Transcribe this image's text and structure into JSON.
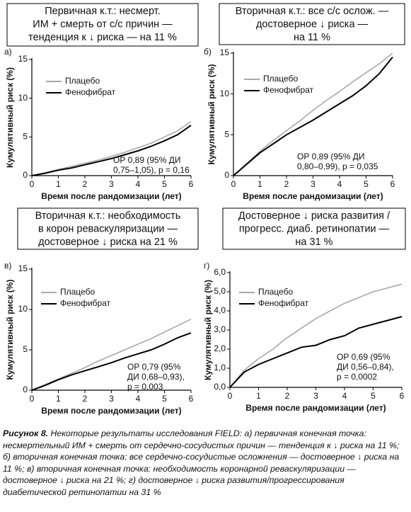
{
  "chart_data": [
    {
      "type": "line",
      "label": "а)",
      "title": [
        "Первичная к.т.: несмерт.",
        "ИМ + смерть от с/с причин —",
        "тенденция к ↓ риска — на 11 %"
      ],
      "xlabel": "Время после рандомизации (лет)",
      "ylabel": "Кумулятивный риск (%)",
      "x": [
        0,
        0.5,
        1,
        1.5,
        2,
        2.5,
        3,
        3.5,
        4,
        4.5,
        5,
        5.5,
        6
      ],
      "series": [
        {
          "name": "Плацебо",
          "color": "#a8a8a8",
          "values": [
            0,
            0.4,
            0.8,
            1.2,
            1.6,
            2.0,
            2.5,
            3.0,
            3.6,
            4.2,
            5.0,
            5.8,
            7.0
          ]
        },
        {
          "name": "Фенофибрат",
          "color": "#000000",
          "values": [
            0,
            0.3,
            0.7,
            1.0,
            1.4,
            1.8,
            2.2,
            2.7,
            3.2,
            3.8,
            4.5,
            5.3,
            6.5
          ]
        }
      ],
      "annotation": [
        "ОР 0,89 (95% ДИ",
        "0,75–1,05), p = 0,16"
      ],
      "xlim": [
        0,
        6
      ],
      "xticks": [
        0,
        1,
        2,
        3,
        4,
        5,
        6
      ],
      "ylim": [
        0,
        15
      ],
      "yticks": [
        0,
        5,
        10,
        15
      ]
    },
    {
      "type": "line",
      "label": "б)",
      "title": [
        "Вторичная к.т.: все с/с ослож. —",
        "достоверное ↓ риска —",
        "на 11 %"
      ],
      "xlabel": "Время после рандомизации (лет)",
      "ylabel": "Кумулятивный риск (%)",
      "x": [
        0,
        0.5,
        1,
        1.5,
        2,
        2.5,
        3,
        3.5,
        4,
        4.5,
        5,
        5.5,
        6
      ],
      "series": [
        {
          "name": "Плацебо",
          "color": "#a8a8a8",
          "values": [
            0,
            1.5,
            3.0,
            4.3,
            5.5,
            6.7,
            8.0,
            9.2,
            10.3,
            11.5,
            12.6,
            13.7,
            15.0
          ]
        },
        {
          "name": "Фенофибрат",
          "color": "#000000",
          "values": [
            0,
            1.4,
            2.8,
            3.9,
            5.0,
            5.9,
            6.8,
            7.8,
            8.8,
            9.8,
            11.0,
            12.5,
            14.5
          ]
        }
      ],
      "annotation": [
        "ОР 0,89 (95% ДИ",
        "0,80–0,99), p = 0,035"
      ],
      "xlim": [
        0,
        6
      ],
      "xticks": [
        0,
        1,
        2,
        3,
        4,
        5,
        6
      ],
      "ylim": [
        0,
        15
      ],
      "yticks": [
        0,
        5,
        10,
        15
      ]
    },
    {
      "type": "line",
      "label": "в)",
      "title": [
        "Вторичная к.т.: необходимость",
        "в корон реваскуляризации —",
        "достоверное ↓ риска на 21 %"
      ],
      "xlabel": "Время после рандомизации (лет)",
      "ylabel": "Кумулятивный риск (%)",
      "x": [
        0,
        0.5,
        1,
        1.5,
        2,
        2.5,
        3,
        3.5,
        4,
        4.5,
        5,
        5.5,
        6
      ],
      "series": [
        {
          "name": "Плацебо",
          "color": "#a8a8a8",
          "values": [
            0,
            0.7,
            1.4,
            2.1,
            2.8,
            3.6,
            4.3,
            5.0,
            5.7,
            6.4,
            7.2,
            8.0,
            8.8
          ]
        },
        {
          "name": "Фенофибрат",
          "color": "#000000",
          "values": [
            0,
            0.6,
            1.3,
            1.9,
            2.4,
            2.9,
            3.4,
            4.0,
            4.5,
            5.0,
            5.7,
            6.5,
            7.1
          ]
        }
      ],
      "annotation": [
        "ОР 0,79 (95%",
        "ДИ 0,68–0,93),",
        "p = 0,003"
      ],
      "xlim": [
        0,
        6
      ],
      "xticks": [
        0,
        1,
        2,
        3,
        4,
        5,
        6
      ],
      "ylim": [
        0,
        15
      ],
      "yticks": [
        0,
        5,
        10,
        15
      ]
    },
    {
      "type": "line",
      "label": "г)",
      "title": [
        "Достоверное ↓ риска развития /",
        "прогресс. диаб. ретинопатии —",
        "на 31 %"
      ],
      "xlabel": "Время после рандомизации (лет)",
      "ylabel": "Кумулятивный риск (%)",
      "x": [
        0,
        0.5,
        1,
        1.5,
        2,
        2.5,
        3,
        3.5,
        4,
        4.5,
        5,
        5.5,
        6
      ],
      "series": [
        {
          "name": "Плацебо",
          "color": "#a8a8a8",
          "values": [
            0,
            0.9,
            1.5,
            2.0,
            2.6,
            3.1,
            3.6,
            4.0,
            4.4,
            4.7,
            5.0,
            5.2,
            5.4
          ]
        },
        {
          "name": "Фенофибрат",
          "color": "#000000",
          "values": [
            0,
            0.8,
            1.2,
            1.5,
            1.8,
            2.1,
            2.2,
            2.5,
            2.7,
            3.1,
            3.3,
            3.5,
            3.7
          ]
        }
      ],
      "annotation": [
        "ОР 0,69 (95%",
        "ДИ 0,56–0,84),",
        "p = 0,0002"
      ],
      "xlim": [
        0,
        6
      ],
      "xticks": [
        0,
        1,
        2,
        3,
        4,
        5,
        6
      ],
      "ylim": [
        0,
        6
      ],
      "yticks": [
        {
          "value": 0,
          "label": "0,0"
        },
        {
          "value": 1,
          "label": "1,0"
        },
        {
          "value": 2,
          "label": "2,0"
        },
        {
          "value": 3,
          "label": "3,0"
        },
        {
          "value": 4,
          "label": "4,0"
        },
        {
          "value": 5,
          "label": "5,0"
        },
        {
          "value": 6,
          "label": "6,0"
        }
      ]
    }
  ],
  "caption": {
    "label": "Рисунок 8.",
    "text": "Некоторые результаты исследования FIELD: а) первичная конечная точка: несмертельный ИМ + смерть от сердечно-сосудистых причин — тенденция к ↓ риска на 11 %; б) вторичная конечная точка: все сердечно-сосудистые осложнения — достоверное ↓ риска на 11 %; в) вторичная конечная точка: необходимость коронарной реваскуляризации — достоверное ↓ риска на 21 %; г) достоверное ↓ риска развития/прогрессирования диабетической ретинопатии на 31 %"
  }
}
